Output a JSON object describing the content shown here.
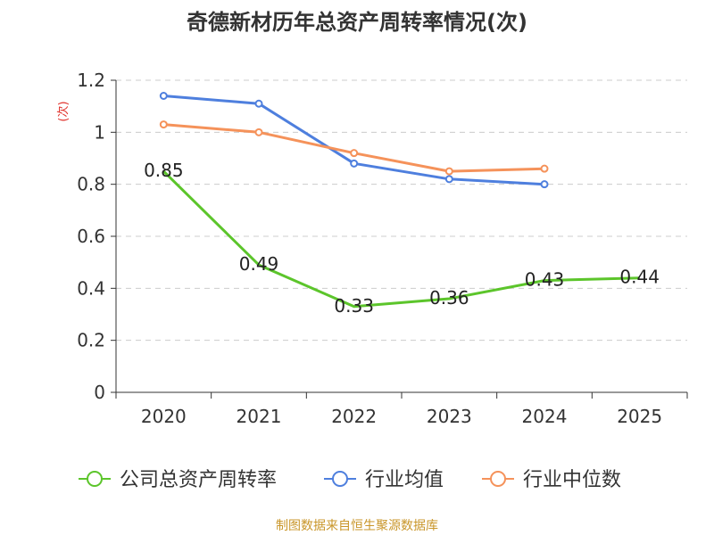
{
  "chart_data": {
    "type": "line",
    "title": "奇德新材历年总资产周转率情况(次)",
    "ylabel": "(次)",
    "xlabel": "",
    "categories": [
      "2020",
      "2021",
      "2022",
      "2023",
      "2024",
      "2025"
    ],
    "yticks": [
      "0",
      "0.2",
      "0.4",
      "0.6",
      "0.8",
      "1",
      "1.2"
    ],
    "ylim": [
      0,
      1.2
    ],
    "grid": true,
    "legend_position": "bottom",
    "series": [
      {
        "name": "公司总资产周转率",
        "color": "#5cc52b",
        "values": [
          0.85,
          0.49,
          0.33,
          0.36,
          0.43,
          0.44
        ],
        "labels": [
          "0.85",
          "0.49",
          "0.33",
          "0.36",
          "0.43",
          "0.44"
        ],
        "markers": false
      },
      {
        "name": "行业均值",
        "color": "#4e7fde",
        "values": [
          1.14,
          1.11,
          0.88,
          0.82,
          0.8,
          null
        ],
        "markers": true
      },
      {
        "name": "行业中位数",
        "color": "#f5925a",
        "values": [
          1.03,
          1.0,
          0.92,
          0.85,
          0.86,
          null
        ],
        "markers": true
      }
    ],
    "source": "制图数据来自恒生聚源数据库",
    "colors": {
      "title": "#333333",
      "ylabel": "#e0312b",
      "axis": "#333333",
      "grid": "#cccccc",
      "source": "#c9962a"
    }
  }
}
